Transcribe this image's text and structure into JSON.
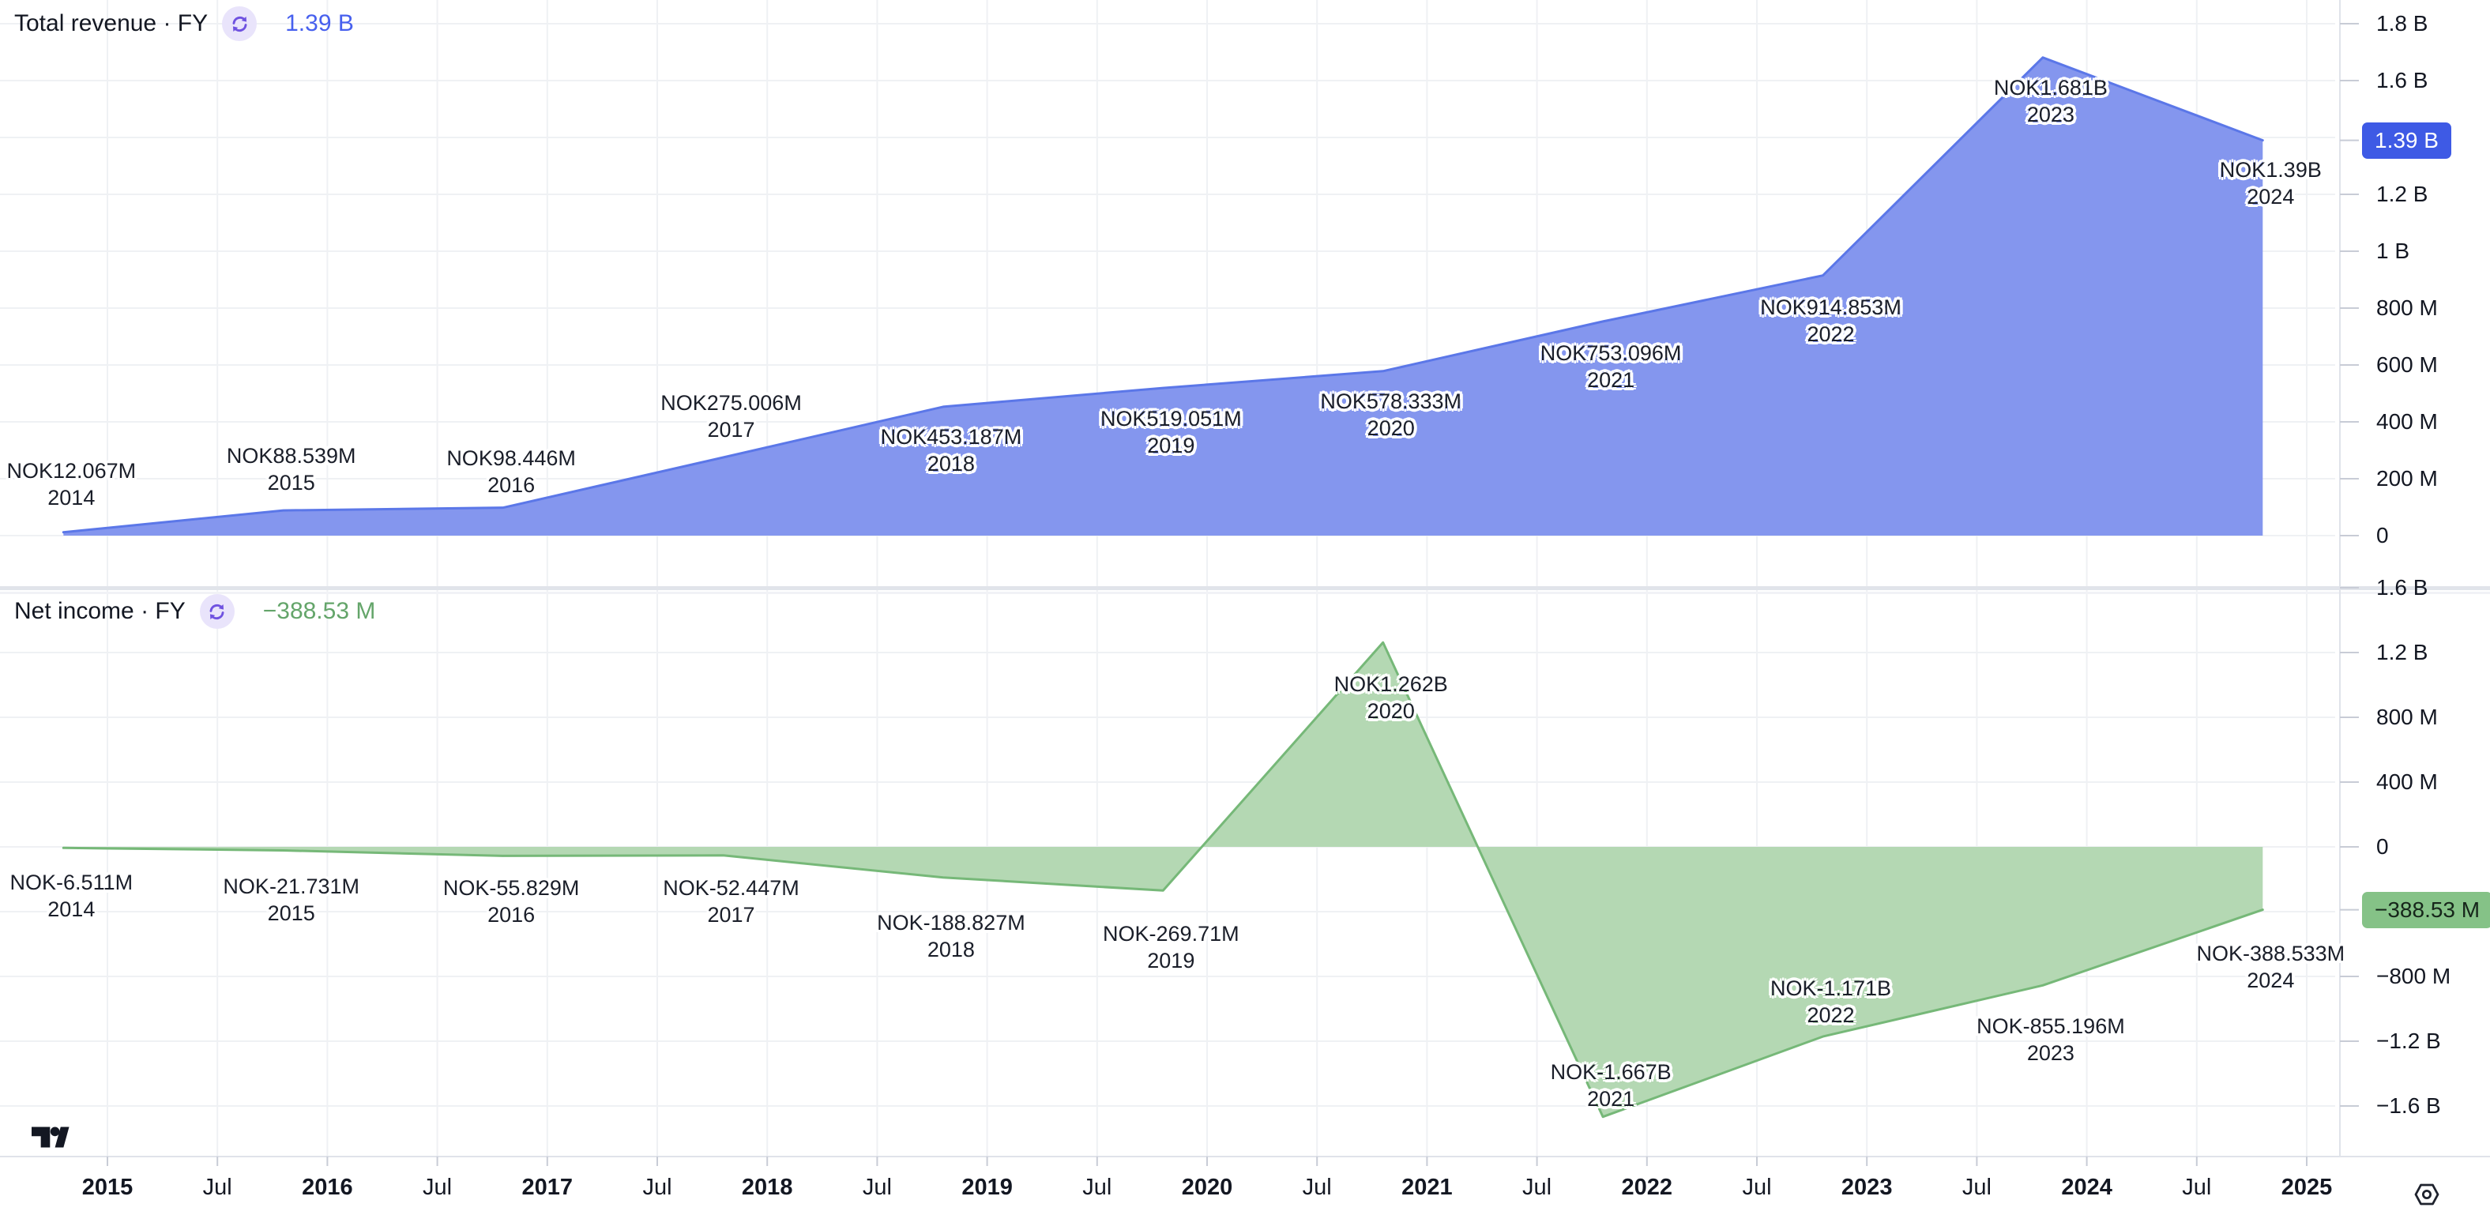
{
  "colors": {
    "background": "#ffffff",
    "text": "#131722",
    "grid": "#eff1f4",
    "divider": "#e1e4ea",
    "divider_faint": "#f1f2f6",
    "axis_border": "#e0e3ea",
    "tick_stub": "#c8ccd6",
    "revenue_line": "#5b77e8",
    "revenue_fill": "#8496ee",
    "revenue_accent": "#4760ee",
    "revenue_badge_bg": "#3e5ae5",
    "revenue_badge_text": "#ffffff",
    "income_line": "#76b878",
    "income_fill": "#b4d8b3",
    "income_accent": "#64a56a",
    "income_badge_bg": "#85c287",
    "income_badge_text": "#16261a",
    "icon_purple": "#6f52e0",
    "icon_purple_bg": "#e9e4fb",
    "logo": "#131722"
  },
  "chart_data": [
    {
      "type": "area",
      "name": "Total revenue",
      "period": "FY",
      "currency": "NOK",
      "legend_title": "Total revenue · FY",
      "legend_value": "1.39 B",
      "x_years": [
        2014,
        2015,
        2016,
        2017,
        2018,
        2019,
        2020,
        2021,
        2022,
        2023,
        2024
      ],
      "values_M": [
        12.067,
        88.539,
        98.446,
        275.006,
        453.187,
        519.051,
        578.333,
        753.096,
        914.853,
        1681,
        1390
      ],
      "point_labels": [
        "NOK12.067M",
        "NOK88.539M",
        "NOK98.446M",
        "NOK275.006M",
        "NOK453.187M",
        "NOK519.051M",
        "NOK578.333M",
        "NOK753.096M",
        "NOK914.853M",
        "NOK1.681B",
        "NOK1.39B"
      ],
      "baseline_M": 0,
      "ylim_M": [
        -178,
        1883
      ],
      "grid": true,
      "legend_position": "top-left",
      "y_axis": {
        "side": "right",
        "ticks": [
          {
            "label": "1.8 B",
            "value_M": 1800
          },
          {
            "label": "1.6 B",
            "value_M": 1600
          },
          {
            "label": "1.2 B",
            "value_M": 1200
          },
          {
            "label": "1 B",
            "value_M": 1000
          },
          {
            "label": "800 M",
            "value_M": 800
          },
          {
            "label": "600 M",
            "value_M": 600
          },
          {
            "label": "400 M",
            "value_M": 400
          },
          {
            "label": "200 M",
            "value_M": 200
          },
          {
            "label": "0",
            "value_M": 0
          }
        ],
        "badge": {
          "label": "1.39 B",
          "value_M": 1390
        }
      }
    },
    {
      "type": "area",
      "name": "Net income",
      "period": "FY",
      "currency": "NOK",
      "legend_title": "Net income · FY",
      "legend_value": "−388.53 M",
      "x_years": [
        2014,
        2015,
        2016,
        2017,
        2018,
        2019,
        2020,
        2021,
        2022,
        2023,
        2024
      ],
      "values_M": [
        -6.511,
        -21.731,
        -55.829,
        -52.447,
        -188.827,
        -269.71,
        1262,
        -1667,
        -1171,
        -855.196,
        -388.533
      ],
      "point_labels": [
        "NOK-6.511M",
        "NOK-21.731M",
        "NOK-55.829M",
        "NOK-52.447M",
        "NOK-188.827M",
        "NOK-269.71M",
        "NOK1.262B",
        "NOK-1.667B",
        "NOK-1.171B",
        "NOK-855.196M",
        "NOK-388.533M"
      ],
      "baseline_M": 0,
      "ylim_M": [
        -1912,
        1590
      ],
      "grid": true,
      "legend_position": "top-left",
      "y_axis": {
        "side": "right",
        "ticks": [
          {
            "label": "1.6 B",
            "value_M": 1600
          },
          {
            "label": "1.2 B",
            "value_M": 1200
          },
          {
            "label": "800 M",
            "value_M": 800
          },
          {
            "label": "400 M",
            "value_M": 400
          },
          {
            "label": "0",
            "value_M": 0
          },
          {
            "label": "−800 M",
            "value_M": -800
          },
          {
            "label": "−1.2 B",
            "value_M": -1200
          },
          {
            "label": "−1.6 B",
            "value_M": -1600
          }
        ],
        "badge": {
          "label": "−388.53 M",
          "value_M": -388.53
        }
      }
    }
  ],
  "time_axis": {
    "labels": [
      {
        "text": "2015",
        "t": 2015,
        "bold": true
      },
      {
        "text": "Jul",
        "t": 2015.5,
        "bold": false
      },
      {
        "text": "2016",
        "t": 2016,
        "bold": true
      },
      {
        "text": "Jul",
        "t": 2016.5,
        "bold": false
      },
      {
        "text": "2017",
        "t": 2017,
        "bold": true
      },
      {
        "text": "Jul",
        "t": 2017.5,
        "bold": false
      },
      {
        "text": "2018",
        "t": 2018,
        "bold": true
      },
      {
        "text": "Jul",
        "t": 2018.5,
        "bold": false
      },
      {
        "text": "2019",
        "t": 2019,
        "bold": true
      },
      {
        "text": "Jul",
        "t": 2019.5,
        "bold": false
      },
      {
        "text": "2020",
        "t": 2020,
        "bold": true
      },
      {
        "text": "Jul",
        "t": 2020.5,
        "bold": false
      },
      {
        "text": "2021",
        "t": 2021,
        "bold": true
      },
      {
        "text": "Jul",
        "t": 2021.5,
        "bold": false
      },
      {
        "text": "2022",
        "t": 2022,
        "bold": true
      },
      {
        "text": "Jul",
        "t": 2022.5,
        "bold": false
      },
      {
        "text": "2023",
        "t": 2023,
        "bold": true
      },
      {
        "text": "Jul",
        "t": 2023.5,
        "bold": false
      },
      {
        "text": "2024",
        "t": 2024,
        "bold": true
      },
      {
        "text": "Jul",
        "t": 2024.5,
        "bold": false
      },
      {
        "text": "2025",
        "t": 2025,
        "bold": true
      }
    ]
  }
}
